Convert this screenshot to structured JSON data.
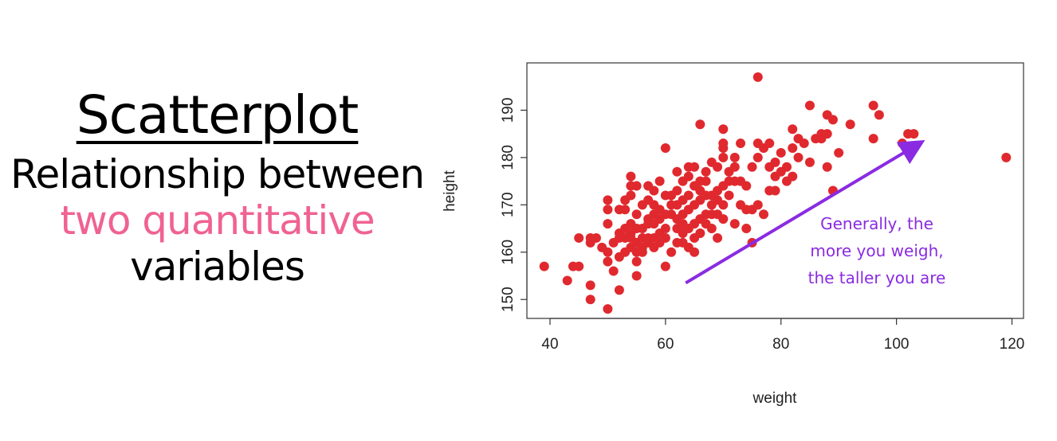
{
  "left_panel": {
    "title": "Scatterplot",
    "line1": "Relationship between",
    "line2": "two quantitative",
    "line3": "variables",
    "highlight_color": "#f06292"
  },
  "chart_data": {
    "type": "scatter",
    "xlabel": "weight",
    "ylabel": "height",
    "xlim": [
      36,
      122
    ],
    "ylim": [
      146,
      200
    ],
    "xticks": [
      40,
      60,
      80,
      100,
      120
    ],
    "yticks": [
      150,
      160,
      170,
      180,
      190
    ],
    "grid": false,
    "point_color": "#e0292e",
    "points": [
      [
        39,
        157
      ],
      [
        43,
        154
      ],
      [
        44,
        157
      ],
      [
        45,
        157
      ],
      [
        45,
        163
      ],
      [
        47,
        153
      ],
      [
        47,
        150
      ],
      [
        47,
        163
      ],
      [
        47,
        162
      ],
      [
        48,
        163
      ],
      [
        49,
        161
      ],
      [
        50,
        148
      ],
      [
        50,
        158
      ],
      [
        50,
        160
      ],
      [
        50,
        166
      ],
      [
        50,
        169
      ],
      [
        50,
        171
      ],
      [
        51,
        156
      ],
      [
        51,
        162
      ],
      [
        52,
        152
      ],
      [
        52,
        159
      ],
      [
        52,
        163
      ],
      [
        52,
        169
      ],
      [
        52,
        164
      ],
      [
        53,
        160
      ],
      [
        53,
        163
      ],
      [
        53,
        165
      ],
      [
        53,
        169
      ],
      [
        53,
        171
      ],
      [
        54,
        161
      ],
      [
        54,
        163
      ],
      [
        54,
        164
      ],
      [
        54,
        166
      ],
      [
        54,
        172
      ],
      [
        54,
        174
      ],
      [
        54,
        176
      ],
      [
        55,
        155
      ],
      [
        55,
        158
      ],
      [
        55,
        160
      ],
      [
        55,
        162
      ],
      [
        55,
        165
      ],
      [
        55,
        168
      ],
      [
        55,
        174
      ],
      [
        56,
        160
      ],
      [
        56,
        161
      ],
      [
        56,
        163
      ],
      [
        56,
        165
      ],
      [
        56,
        170
      ],
      [
        57,
        162
      ],
      [
        57,
        163
      ],
      [
        57,
        166
      ],
      [
        57,
        167
      ],
      [
        57,
        171
      ],
      [
        58,
        161
      ],
      [
        58,
        163
      ],
      [
        58,
        166
      ],
      [
        58,
        168
      ],
      [
        58,
        173
      ],
      [
        59,
        162
      ],
      [
        59,
        164
      ],
      [
        59,
        167
      ],
      [
        59,
        169
      ],
      [
        59,
        175
      ],
      [
        60,
        157
      ],
      [
        60,
        163
      ],
      [
        60,
        165
      ],
      [
        60,
        168
      ],
      [
        60,
        182
      ],
      [
        61,
        160
      ],
      [
        61,
        168
      ],
      [
        61,
        170
      ],
      [
        61,
        172
      ],
      [
        62,
        165
      ],
      [
        62,
        167
      ],
      [
        62,
        170
      ],
      [
        62,
        173
      ],
      [
        62,
        177
      ],
      [
        63,
        162
      ],
      [
        63,
        164
      ],
      [
        63,
        168
      ],
      [
        63,
        171
      ],
      [
        63,
        175
      ],
      [
        64,
        165
      ],
      [
        64,
        169
      ],
      [
        64,
        172
      ],
      [
        64,
        176
      ],
      [
        64,
        178
      ],
      [
        65,
        160
      ],
      [
        65,
        163
      ],
      [
        65,
        166
      ],
      [
        65,
        170
      ],
      [
        65,
        174
      ],
      [
        65,
        178
      ],
      [
        66,
        164
      ],
      [
        66,
        167
      ],
      [
        66,
        171
      ],
      [
        66,
        173
      ],
      [
        66,
        187
      ],
      [
        67,
        166
      ],
      [
        67,
        168
      ],
      [
        67,
        175
      ],
      [
        67,
        177
      ],
      [
        68,
        165
      ],
      [
        68,
        170
      ],
      [
        68,
        172
      ],
      [
        68,
        179
      ],
      [
        69,
        163
      ],
      [
        69,
        168
      ],
      [
        69,
        171
      ],
      [
        69,
        173
      ],
      [
        69,
        178
      ],
      [
        70,
        167
      ],
      [
        70,
        170
      ],
      [
        70,
        174
      ],
      [
        70,
        180
      ],
      [
        70,
        182
      ],
      [
        70,
        183
      ],
      [
        70,
        186
      ],
      [
        71,
        172
      ],
      [
        71,
        177
      ],
      [
        72,
        166
      ],
      [
        72,
        175
      ],
      [
        72,
        180
      ],
      [
        73,
        170
      ],
      [
        73,
        183
      ],
      [
        74,
        165
      ],
      [
        74,
        169
      ],
      [
        74,
        174
      ],
      [
        75,
        162
      ],
      [
        75,
        169
      ],
      [
        75,
        178
      ],
      [
        76,
        170
      ],
      [
        76,
        180
      ],
      [
        76,
        183
      ],
      [
        76,
        197
      ],
      [
        77,
        168
      ],
      [
        77,
        182
      ],
      [
        78,
        173
      ],
      [
        78,
        178
      ],
      [
        78,
        183
      ],
      [
        79,
        173
      ],
      [
        79,
        176
      ],
      [
        79,
        179
      ],
      [
        80,
        177
      ],
      [
        80,
        181
      ],
      [
        81,
        175
      ],
      [
        81,
        178
      ],
      [
        82,
        176
      ],
      [
        82,
        182
      ],
      [
        82,
        186
      ],
      [
        83,
        180
      ],
      [
        83,
        184
      ],
      [
        84,
        183
      ],
      [
        85,
        179
      ],
      [
        85,
        191
      ],
      [
        86,
        184
      ],
      [
        87,
        184
      ],
      [
        87,
        185
      ],
      [
        88,
        178
      ],
      [
        88,
        185
      ],
      [
        88,
        189
      ],
      [
        89,
        173
      ],
      [
        89,
        188
      ],
      [
        90,
        181
      ],
      [
        92,
        187
      ],
      [
        96,
        184
      ],
      [
        96,
        191
      ],
      [
        97,
        189
      ],
      [
        101,
        183
      ],
      [
        102,
        185
      ],
      [
        103,
        185
      ],
      [
        119,
        180
      ],
      [
        66,
        175
      ],
      [
        67,
        172
      ],
      [
        71,
        175
      ],
      [
        72,
        178
      ],
      [
        73,
        175
      ],
      [
        58,
        170
      ],
      [
        60,
        172
      ],
      [
        57,
        174
      ],
      [
        62,
        162
      ],
      [
        63,
        166
      ],
      [
        68,
        168
      ],
      [
        64,
        161
      ]
    ]
  },
  "annotation": {
    "line1": "Generally, the",
    "line2": "more you weigh,",
    "line3": "the taller you are",
    "color": "#8a2be2",
    "arrow": {
      "from": [
        63.5,
        153.5
      ],
      "to": [
        104,
        183
      ]
    }
  }
}
